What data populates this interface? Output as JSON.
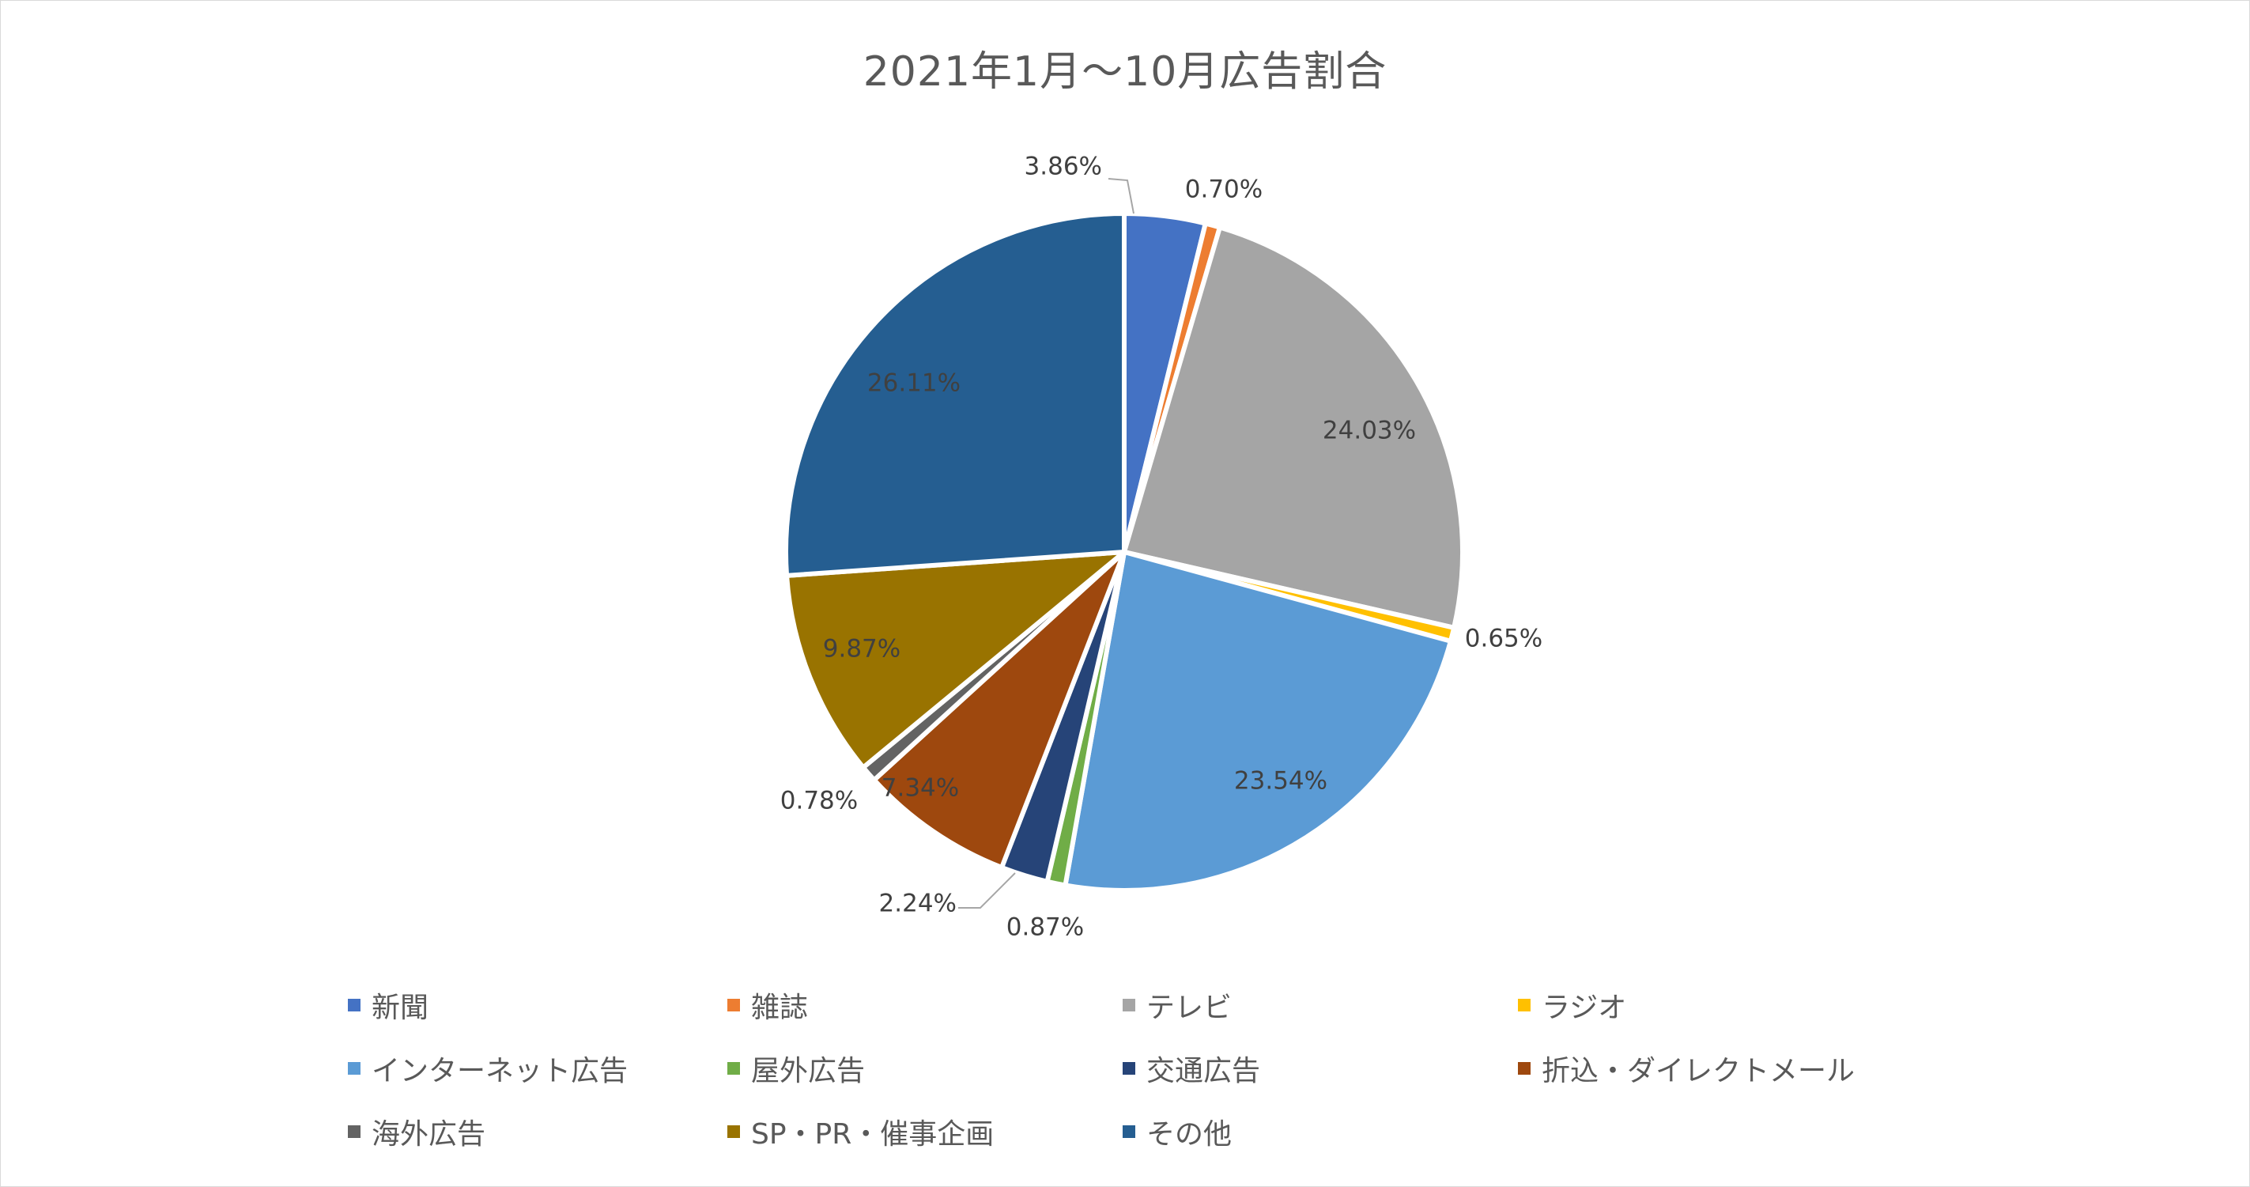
{
  "chart_data": {
    "type": "pie",
    "title": "2021年1月～10月広告割合",
    "slices": [
      {
        "label": "新聞",
        "value": 3.86,
        "display": "3.86%",
        "color": "#4472C4"
      },
      {
        "label": "雑誌",
        "value": 0.7,
        "display": "0.70%",
        "color": "#ED7D31"
      },
      {
        "label": "テレビ",
        "value": 24.03,
        "display": "24.03%",
        "color": "#A5A5A5"
      },
      {
        "label": "ラジオ",
        "value": 0.65,
        "display": "0.65%",
        "color": "#FFC000"
      },
      {
        "label": "インターネット広告",
        "value": 23.54,
        "display": "23.54%",
        "color": "#5B9BD5"
      },
      {
        "label": "屋外広告",
        "value": 0.87,
        "display": "0.87%",
        "color": "#70AD47"
      },
      {
        "label": "交通広告",
        "value": 2.24,
        "display": "2.24%",
        "color": "#264478"
      },
      {
        "label": "折込・ダイレクトメール",
        "value": 7.34,
        "display": "7.34%",
        "color": "#9E480E"
      },
      {
        "label": "海外広告",
        "value": 0.78,
        "display": "0.78%",
        "color": "#636363"
      },
      {
        "label": "SP・PR・催事企画",
        "value": 9.87,
        "display": "9.87%",
        "color": "#997300"
      },
      {
        "label": "その他",
        "value": 26.11,
        "display": "26.11%",
        "color": "#255E91"
      }
    ],
    "legend_position": "bottom"
  }
}
